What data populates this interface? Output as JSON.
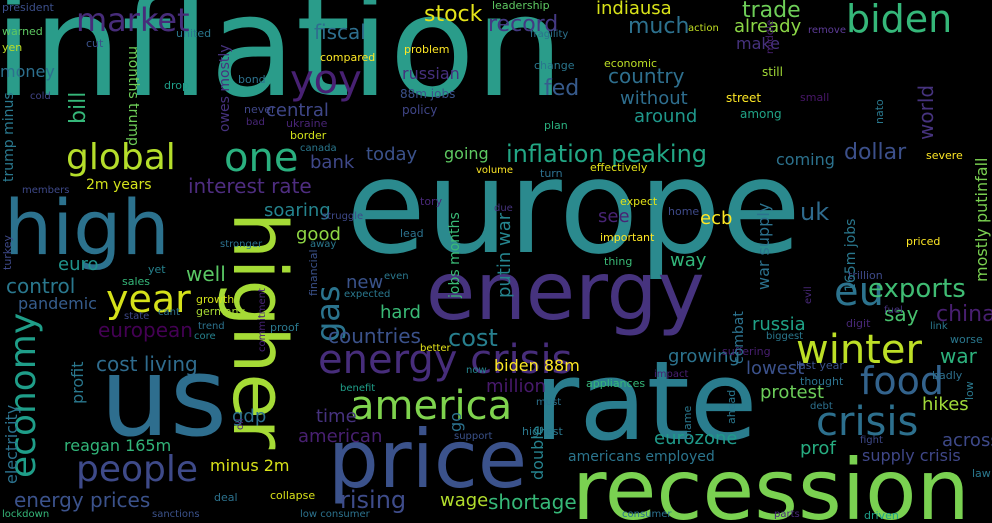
{
  "words": [
    {
      "text": "inflation",
      "color": "#2a9c8a"
    },
    {
      "text": "europe",
      "color": "#2b8a8e"
    },
    {
      "text": "recession",
      "color": "#7ad151"
    },
    {
      "text": "rate",
      "color": "#2a7d8e"
    },
    {
      "text": "us",
      "color": "#2e6e8e"
    },
    {
      "text": "higher",
      "color": "#a5db36"
    },
    {
      "text": "price",
      "color": "#3b528b"
    },
    {
      "text": "energy",
      "color": "#46337e"
    },
    {
      "text": "high",
      "color": "#2c728e"
    },
    {
      "text": "energy crisis",
      "color": "#472d7b"
    },
    {
      "text": "america",
      "color": "#7fd34e"
    },
    {
      "text": "biden",
      "color": "#35b779"
    },
    {
      "text": "global",
      "color": "#b5de2b"
    },
    {
      "text": "one",
      "color": "#2ab07f"
    },
    {
      "text": "yoy",
      "color": "#482173"
    },
    {
      "text": "year",
      "color": "#d5e21a"
    },
    {
      "text": "people",
      "color": "#3e4a89"
    },
    {
      "text": "winter",
      "color": "#bddf26"
    },
    {
      "text": "food",
      "color": "#33638d"
    },
    {
      "text": "crisis",
      "color": "#2d708e"
    },
    {
      "text": "eu",
      "color": "#2c738e"
    },
    {
      "text": "market",
      "color": "#472c7a"
    },
    {
      "text": "economy",
      "color": "#1f9e89"
    },
    {
      "text": "gas",
      "color": "#2b748e"
    },
    {
      "text": "inflation peaking",
      "color": "#22a785"
    },
    {
      "text": "exports",
      "color": "#3fbc73"
    },
    {
      "text": "cost",
      "color": "#277f8e"
    },
    {
      "text": "rising",
      "color": "#3e4c8a"
    },
    {
      "text": "stock",
      "color": "#e5e419"
    },
    {
      "text": "record",
      "color": "#443983"
    },
    {
      "text": "fiscal",
      "color": "#2e6f8e"
    },
    {
      "text": "fed",
      "color": "#375b8d"
    },
    {
      "text": "country",
      "color": "#2e6f8e"
    },
    {
      "text": "much",
      "color": "#2d718e"
    },
    {
      "text": "trade",
      "color": "#6ece58"
    },
    {
      "text": "already",
      "color": "#8bd646"
    },
    {
      "text": "make",
      "color": "#46327e"
    },
    {
      "text": "indiausa",
      "color": "#d8e219"
    },
    {
      "text": "without",
      "color": "#2e6e8e"
    },
    {
      "text": "around",
      "color": "#1f988b"
    },
    {
      "text": "central",
      "color": "#3f4788"
    },
    {
      "text": "bank",
      "color": "#3f4889"
    },
    {
      "text": "today",
      "color": "#3b528b"
    },
    {
      "text": "going",
      "color": "#5ec962"
    },
    {
      "text": "dollar",
      "color": "#3c508b"
    },
    {
      "text": "coming",
      "color": "#2c728e"
    },
    {
      "text": "interest rate",
      "color": "#4e2d80"
    },
    {
      "text": "2m years",
      "color": "#d2e21b"
    },
    {
      "text": "soaring",
      "color": "#25848e"
    },
    {
      "text": "uk",
      "color": "#2f6b8e"
    },
    {
      "text": "ecb",
      "color": "#fde725"
    },
    {
      "text": "see",
      "color": "#482475"
    },
    {
      "text": "good",
      "color": "#8fd744"
    },
    {
      "text": "way",
      "color": "#32b67a"
    },
    {
      "text": "euro",
      "color": "#20938c"
    },
    {
      "text": "well",
      "color": "#5ac864"
    },
    {
      "text": "control",
      "color": "#2a788e"
    },
    {
      "text": "pandemic",
      "color": "#365d8d"
    },
    {
      "text": "european",
      "color": "#440154"
    },
    {
      "text": "countries",
      "color": "#3b528b"
    },
    {
      "text": "hard",
      "color": "#3aba76"
    },
    {
      "text": "new",
      "color": "#3a538b"
    },
    {
      "text": "say",
      "color": "#48c16e"
    },
    {
      "text": "china",
      "color": "#481f70"
    },
    {
      "text": "russia",
      "color": "#1fa187"
    },
    {
      "text": "war",
      "color": "#2db27d"
    },
    {
      "text": "lowest",
      "color": "#3b518b"
    },
    {
      "text": "growing",
      "color": "#2c738e"
    },
    {
      "text": "protest",
      "color": "#6ccd5a"
    },
    {
      "text": "hikes",
      "color": "#a0da39"
    },
    {
      "text": "across",
      "color": "#3e4989"
    },
    {
      "text": "cost living",
      "color": "#2f6c8e"
    },
    {
      "text": "million",
      "color": "#481a6c"
    },
    {
      "text": "time",
      "color": "#46327e"
    },
    {
      "text": "gdp",
      "color": "#2d708e"
    },
    {
      "text": "american",
      "color": "#482071"
    },
    {
      "text": "reagan 165m",
      "color": "#32b67a"
    },
    {
      "text": "minus 2m",
      "color": "#d8e219"
    },
    {
      "text": "energy prices",
      "color": "#3b528b"
    },
    {
      "text": "wage",
      "color": "#b2dd2d"
    },
    {
      "text": "shortage",
      "color": "#36b878"
    },
    {
      "text": "biden 88m",
      "color": "#fde725"
    },
    {
      "text": "eurozone",
      "color": "#1f9a8a"
    },
    {
      "text": "americans employed",
      "color": "#2b758e"
    },
    {
      "text": "prof",
      "color": "#27ad81"
    },
    {
      "text": "supply crisis",
      "color": "#3f4788"
    },
    {
      "text": "money",
      "color": "#2d708e"
    },
    {
      "text": "months trump",
      "color": "#6ece58"
    },
    {
      "text": "bill",
      "color": "#35b779"
    },
    {
      "text": "owes mostly",
      "color": "#46327e"
    },
    {
      "text": "russian",
      "color": "#46307e"
    },
    {
      "text": "88m jobs",
      "color": "#3b528b"
    },
    {
      "text": "policy",
      "color": "#404688"
    },
    {
      "text": "compared",
      "color": "#fde725"
    },
    {
      "text": "problem",
      "color": "#fde725"
    },
    {
      "text": "change",
      "color": "#2a768e"
    },
    {
      "text": "economic",
      "color": "#bddf26"
    },
    {
      "text": "expect",
      "color": "#e2e418"
    },
    {
      "text": "home",
      "color": "#3e4a89"
    },
    {
      "text": "important",
      "color": "#fde725"
    },
    {
      "text": "street",
      "color": "#fde725"
    },
    {
      "text": "still",
      "color": "#a2da37"
    },
    {
      "text": "among",
      "color": "#20a386"
    },
    {
      "text": "small",
      "color": "#481769"
    },
    {
      "text": "action",
      "color": "#c2df23"
    },
    {
      "text": "remove",
      "color": "#5e3c99"
    },
    {
      "text": "president",
      "color": "#3c4f8a"
    },
    {
      "text": "warned",
      "color": "#5ec962"
    },
    {
      "text": "yen",
      "color": "#bddf26"
    },
    {
      "text": "cut",
      "color": "#3b528b"
    },
    {
      "text": "united",
      "color": "#2a788e"
    },
    {
      "text": "cold",
      "color": "#414487"
    },
    {
      "text": "drop",
      "color": "#1f9e89"
    },
    {
      "text": "bond",
      "color": "#2c728e"
    },
    {
      "text": "never",
      "color": "#3f4788"
    },
    {
      "text": "bad",
      "color": "#482677"
    },
    {
      "text": "ukraine",
      "color": "#482475"
    },
    {
      "text": "border",
      "color": "#d2e21b"
    },
    {
      "text": "canada",
      "color": "#2a788e"
    },
    {
      "text": "struggle",
      "color": "#3e4989"
    },
    {
      "text": "leadership",
      "color": "#5ec962"
    },
    {
      "text": "fragility",
      "color": "#2c728e"
    },
    {
      "text": "plan",
      "color": "#2ab07f"
    },
    {
      "text": "turn",
      "color": "#2d708e"
    },
    {
      "text": "effectively",
      "color": "#e5e419"
    },
    {
      "text": "volume",
      "color": "#fde725"
    },
    {
      "text": "tory",
      "color": "#482878"
    },
    {
      "text": "lead",
      "color": "#2c728e"
    },
    {
      "text": "due",
      "color": "#46337e"
    },
    {
      "text": "thing",
      "color": "#3aba76"
    },
    {
      "text": "severe",
      "color": "#fde725"
    },
    {
      "text": "priced",
      "color": "#fde725"
    },
    {
      "text": "trillion",
      "color": "#3e4a89"
    },
    {
      "text": "fuel",
      "color": "#46337e"
    },
    {
      "text": "digit",
      "color": "#482878"
    },
    {
      "text": "link",
      "color": "#2a788e"
    },
    {
      "text": "worse",
      "color": "#2a788e"
    },
    {
      "text": "biggest",
      "color": "#2a788e"
    },
    {
      "text": "suffering",
      "color": "#481f70"
    },
    {
      "text": "last year",
      "color": "#3b528b"
    },
    {
      "text": "thought",
      "color": "#2c728e"
    },
    {
      "text": "debt",
      "color": "#2d708e"
    },
    {
      "text": "fight",
      "color": "#3e4989"
    },
    {
      "text": "badly",
      "color": "#2d708e"
    },
    {
      "text": "law",
      "color": "#2a788e"
    },
    {
      "text": "sales",
      "color": "#35b779"
    },
    {
      "text": "yet",
      "color": "#26828e"
    },
    {
      "text": "cant",
      "color": "#2c728e"
    },
    {
      "text": "state",
      "color": "#3e4989"
    },
    {
      "text": "growth",
      "color": "#d2e21b"
    },
    {
      "text": "germany",
      "color": "#a8db34"
    },
    {
      "text": "trend",
      "color": "#2c728e"
    },
    {
      "text": "core",
      "color": "#26828e"
    },
    {
      "text": "proof",
      "color": "#2a788e"
    },
    {
      "text": "even",
      "color": "#2a788e"
    },
    {
      "text": "expected",
      "color": "#2a788e"
    },
    {
      "text": "stronger",
      "color": "#2c728e"
    },
    {
      "text": "away",
      "color": "#2a788e"
    },
    {
      "text": "benefit",
      "color": "#1f9e89"
    },
    {
      "text": "better",
      "color": "#e5e419"
    },
    {
      "text": "now",
      "color": "#25848e"
    },
    {
      "text": "must",
      "color": "#2c728e"
    },
    {
      "text": "highest",
      "color": "#2a788e"
    },
    {
      "text": "support",
      "color": "#3b528b"
    },
    {
      "text": "appliances",
      "color": "#35b779"
    },
    {
      "text": "impact",
      "color": "#482071"
    },
    {
      "text": "deal",
      "color": "#2c728e"
    },
    {
      "text": "collapse",
      "color": "#d8e219"
    },
    {
      "text": "lockdown",
      "color": "#35b779"
    },
    {
      "text": "sanctions",
      "color": "#3b528b"
    },
    {
      "text": "low consumer",
      "color": "#2c728e"
    },
    {
      "text": "consumer",
      "color": "#2c728e"
    },
    {
      "text": "parts",
      "color": "#482878"
    },
    {
      "text": "driven",
      "color": "#1f9e89"
    },
    {
      "text": "members",
      "color": "#3e4989"
    },
    {
      "text": "turkey",
      "color": "#3e4989"
    },
    {
      "text": "trump minus",
      "color": "#2a788e"
    },
    {
      "text": "electricity",
      "color": "#2c728e"
    },
    {
      "text": "profit",
      "color": "#2a788e"
    },
    {
      "text": "jobs months",
      "color": "#3aba76"
    },
    {
      "text": "putin war",
      "color": "#25848e"
    },
    {
      "text": "double",
      "color": "#26828e"
    },
    {
      "text": "go",
      "color": "#2c728e"
    },
    {
      "text": "war supply",
      "color": "#2c728e"
    },
    {
      "text": "combat",
      "color": "#2c728e"
    },
    {
      "text": "165m jobs",
      "color": "#2a788e"
    },
    {
      "text": "mostly putinfall",
      "color": "#7ad151"
    },
    {
      "text": "world",
      "color": "#46337e"
    },
    {
      "text": "nato",
      "color": "#2a788e"
    },
    {
      "text": "middle",
      "color": "#482071"
    },
    {
      "text": "ahead",
      "color": "#2a788e"
    },
    {
      "text": "blame",
      "color": "#2a788e"
    },
    {
      "text": "financial",
      "color": "#3b528b"
    },
    {
      "text": "commitment",
      "color": "#482475"
    },
    {
      "text": "evil",
      "color": "#482878"
    },
    {
      "text": "low",
      "color": "#2a788e"
    },
    {
      "text": "oil",
      "color": "#482475"
    }
  ]
}
